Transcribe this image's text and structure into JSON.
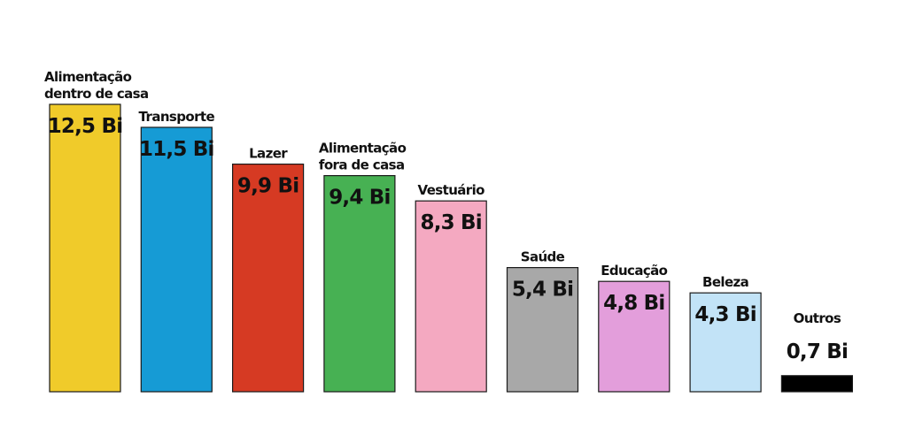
{
  "chart_data": {
    "type": "bar",
    "title": "",
    "xlabel": "",
    "ylabel": "",
    "ylim": [
      0,
      12.5
    ],
    "grid": false,
    "categories": [
      [
        "Alimentação",
        "dentro de casa"
      ],
      [
        "Transporte"
      ],
      [
        "Lazer"
      ],
      [
        "Alimentação",
        "fora de casa"
      ],
      [
        "Vestuário"
      ],
      [
        "Saúde"
      ],
      [
        "Educação"
      ],
      [
        "Beleza"
      ],
      [
        "Outros"
      ]
    ],
    "values": [
      12.5,
      11.5,
      9.9,
      9.4,
      8.3,
      5.4,
      4.8,
      4.3,
      0.7
    ],
    "value_labels": [
      "12,5 Bi",
      "11,5 Bi",
      "9,9 Bi",
      "9,4 Bi",
      "8,3 Bi",
      "5,4 Bi",
      "4,8 Bi",
      "4,3 Bi",
      "0,7 Bi"
    ],
    "colors": [
      "#f0cb2a",
      "#169bd5",
      "#d63a23",
      "#47b153",
      "#f4a9c1",
      "#a8a8a8",
      "#e39edb",
      "#c2e3f7",
      "#000000"
    ]
  }
}
